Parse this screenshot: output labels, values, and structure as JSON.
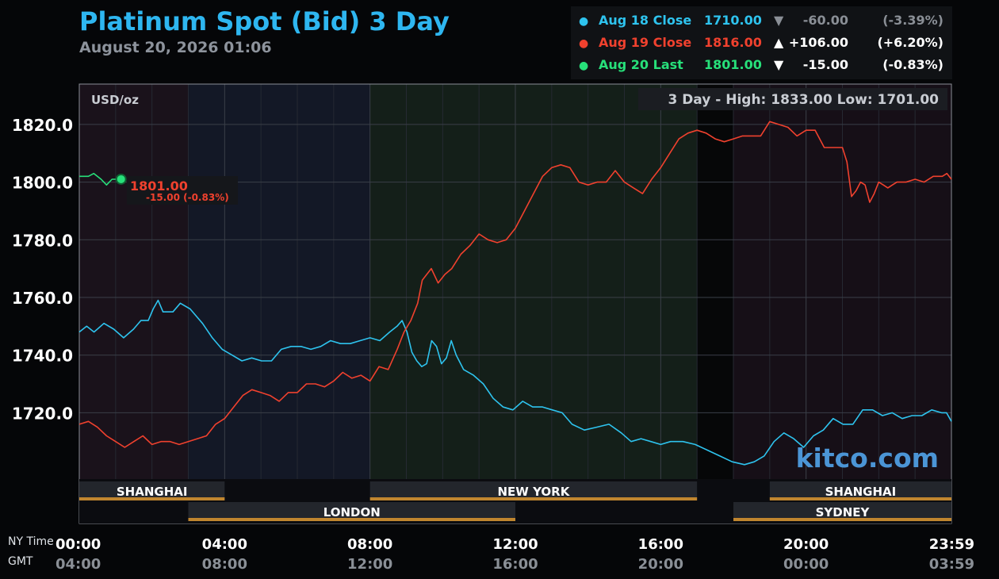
{
  "title": "Platinum Spot (Bid) 3 Day",
  "subtitle": "August 20, 2026 01:06",
  "legend": [
    {
      "dot": "●",
      "name": "Aug 18 Close",
      "value": "1710.00",
      "arrow": "▼",
      "change": "-60.00",
      "pct": "(-3.39%)",
      "color": "#2ec3ee",
      "muted": true
    },
    {
      "dot": "●",
      "name": "Aug 19 Close",
      "value": "1816.00",
      "arrow": "▲",
      "change": "+106.00",
      "pct": "(+6.20%)",
      "color": "#f0412e",
      "muted": false
    },
    {
      "dot": "●",
      "name": "Aug 20 Last",
      "value": "1801.00",
      "arrow": "▼",
      "change": "-15.00",
      "pct": "(-0.83%)",
      "color": "#27e07a",
      "muted": false
    }
  ],
  "unit_label": "USD/oz",
  "range_label": "3 Day - High: 1833.00  Low: 1701.00",
  "last_marker": {
    "price": "1801.00",
    "change": "-15.00 (-0.83%)"
  },
  "watermark": "kitco.com",
  "time_axis": {
    "ny_label": "NY Time",
    "gmt_label": "GMT",
    "ny_ticks": [
      "00:00",
      "04:00",
      "08:00",
      "12:00",
      "16:00",
      "20:00",
      "23:59"
    ],
    "gmt_ticks": [
      "04:00",
      "08:00",
      "12:00",
      "16:00",
      "20:00",
      "00:00",
      "03:59"
    ]
  },
  "sessions": [
    {
      "name": "SHANGHAI",
      "start": 0,
      "end": 4,
      "row": 1
    },
    {
      "name": "NEW YORK",
      "start": 8,
      "end": 17,
      "row": 1
    },
    {
      "name": "SHANGHAI",
      "start": 19,
      "end": 24,
      "row": 1
    },
    {
      "name": "LONDON",
      "start": 3,
      "end": 12,
      "row": 2
    },
    {
      "name": "SYDNEY",
      "start": 18,
      "end": 24,
      "row": 2
    }
  ],
  "chart_data": {
    "type": "line",
    "title": "Platinum Spot (Bid) 3 Day",
    "ylabel": "USD/oz",
    "xlabel": "NY Time",
    "xlim_hours": [
      0,
      24
    ],
    "ylim": [
      1697,
      1834
    ],
    "y_ticks": [
      1720,
      1740,
      1760,
      1780,
      1800,
      1820
    ],
    "grid": true,
    "legend_position": "top-right",
    "series": [
      {
        "name": "Aug 18 Close",
        "color": "#2ec3ee",
        "points": [
          [
            0,
            1748
          ],
          [
            0.3,
            1750
          ],
          [
            0.6,
            1748
          ],
          [
            1,
            1751
          ],
          [
            1.4,
            1749
          ],
          [
            1.8,
            1746
          ],
          [
            2.2,
            1749
          ],
          [
            2.5,
            1752
          ],
          [
            2.8,
            1752
          ],
          [
            3.0,
            1756
          ],
          [
            3.2,
            1759
          ],
          [
            3.4,
            1755
          ],
          [
            3.8,
            1755
          ],
          [
            4.1,
            1758
          ],
          [
            4.5,
            1756
          ],
          [
            5.0,
            1751
          ],
          [
            5.4,
            1746
          ],
          [
            5.8,
            1742
          ],
          [
            6.2,
            1740
          ],
          [
            6.6,
            1738
          ],
          [
            7.0,
            1739
          ],
          [
            7.4,
            1738
          ],
          [
            7.8,
            1738
          ],
          [
            8.2,
            1742
          ],
          [
            8.6,
            1743
          ],
          [
            9.0,
            1743
          ],
          [
            9.4,
            1742
          ],
          [
            9.8,
            1743
          ],
          [
            10.2,
            1745
          ],
          [
            10.6,
            1744
          ],
          [
            11.0,
            1744
          ],
          [
            11.4,
            1745
          ],
          [
            11.8,
            1746
          ],
          [
            12.2,
            1745
          ],
          [
            12.6,
            1748
          ],
          [
            12.9,
            1750
          ],
          [
            13.1,
            1752
          ],
          [
            13.3,
            1748
          ],
          [
            13.5,
            1741
          ],
          [
            13.7,
            1738
          ],
          [
            13.9,
            1736
          ],
          [
            14.1,
            1737
          ],
          [
            14.3,
            1745
          ],
          [
            14.5,
            1743
          ],
          [
            14.7,
            1737
          ],
          [
            14.9,
            1739
          ],
          [
            15.1,
            1745
          ],
          [
            15.3,
            1740
          ],
          [
            15.6,
            1735
          ],
          [
            16.0,
            1733
          ],
          [
            16.4,
            1730
          ],
          [
            16.8,
            1725
          ],
          [
            17.2,
            1722
          ],
          [
            17.6,
            1721
          ],
          [
            18.0,
            1724
          ],
          [
            18.4,
            1722
          ],
          [
            18.8,
            1722
          ],
          [
            19.2,
            1721
          ],
          [
            19.6,
            1720
          ],
          [
            20.0,
            1716
          ],
          [
            20.5,
            1714
          ],
          [
            21.0,
            1715
          ],
          [
            21.5,
            1716
          ],
          [
            22.0,
            1713
          ],
          [
            22.4,
            1710
          ],
          [
            22.8,
            1711
          ],
          [
            23.2,
            1710
          ],
          [
            23.6,
            1709
          ],
          [
            24.0,
            1710
          ],
          [
            24.5,
            1710
          ],
          [
            25.0,
            1709
          ],
          [
            25.5,
            1707
          ],
          [
            26.0,
            1705
          ],
          [
            26.5,
            1703
          ],
          [
            27.0,
            1702
          ],
          [
            27.4,
            1703
          ],
          [
            27.8,
            1705
          ],
          [
            28.2,
            1710
          ],
          [
            28.6,
            1713
          ],
          [
            29.0,
            1711
          ],
          [
            29.4,
            1708
          ],
          [
            29.8,
            1712
          ],
          [
            30.2,
            1714
          ],
          [
            30.6,
            1718
          ],
          [
            31.0,
            1716
          ],
          [
            31.4,
            1716
          ],
          [
            31.8,
            1721
          ],
          [
            32.2,
            1721
          ],
          [
            32.6,
            1719
          ],
          [
            33.0,
            1720
          ],
          [
            33.4,
            1718
          ],
          [
            33.8,
            1719
          ],
          [
            34.2,
            1719
          ],
          [
            34.6,
            1721
          ],
          [
            35.0,
            1720
          ],
          [
            35.2,
            1720
          ],
          [
            35.4,
            1717
          ]
        ]
      },
      {
        "name": "Aug 19 Close",
        "color": "#f0412e",
        "points": [
          [
            0,
            1716
          ],
          [
            0.4,
            1717
          ],
          [
            0.8,
            1715
          ],
          [
            1.2,
            1712
          ],
          [
            1.6,
            1710
          ],
          [
            2.0,
            1708
          ],
          [
            2.4,
            1710
          ],
          [
            2.8,
            1712
          ],
          [
            3.2,
            1709
          ],
          [
            3.6,
            1710
          ],
          [
            4.0,
            1710
          ],
          [
            4.4,
            1709
          ],
          [
            4.8,
            1710
          ],
          [
            5.2,
            1711
          ],
          [
            5.6,
            1712
          ],
          [
            6.0,
            1716
          ],
          [
            6.4,
            1718
          ],
          [
            6.8,
            1722
          ],
          [
            7.2,
            1726
          ],
          [
            7.6,
            1728
          ],
          [
            8.0,
            1727
          ],
          [
            8.4,
            1726
          ],
          [
            8.8,
            1724
          ],
          [
            9.2,
            1727
          ],
          [
            9.6,
            1727
          ],
          [
            10.0,
            1730
          ],
          [
            10.4,
            1730
          ],
          [
            10.8,
            1729
          ],
          [
            11.2,
            1731
          ],
          [
            11.6,
            1734
          ],
          [
            12.0,
            1732
          ],
          [
            12.4,
            1733
          ],
          [
            12.8,
            1731
          ],
          [
            13.2,
            1736
          ],
          [
            13.6,
            1735
          ],
          [
            14.0,
            1742
          ],
          [
            14.3,
            1748
          ],
          [
            14.6,
            1752
          ],
          [
            14.9,
            1758
          ],
          [
            15.1,
            1766
          ],
          [
            15.3,
            1768
          ],
          [
            15.5,
            1770
          ],
          [
            15.8,
            1765
          ],
          [
            16.1,
            1768
          ],
          [
            16.4,
            1770
          ],
          [
            16.8,
            1775
          ],
          [
            17.2,
            1778
          ],
          [
            17.6,
            1782
          ],
          [
            18.0,
            1780
          ],
          [
            18.4,
            1779
          ],
          [
            18.8,
            1780
          ],
          [
            19.2,
            1784
          ],
          [
            19.6,
            1790
          ],
          [
            20.0,
            1796
          ],
          [
            20.4,
            1802
          ],
          [
            20.8,
            1805
          ],
          [
            21.2,
            1806
          ],
          [
            21.6,
            1805
          ],
          [
            22.0,
            1800
          ],
          [
            22.4,
            1799
          ],
          [
            22.8,
            1800
          ],
          [
            23.2,
            1800
          ],
          [
            23.6,
            1804
          ],
          [
            24.0,
            1800
          ],
          [
            24.4,
            1798
          ],
          [
            24.8,
            1796
          ],
          [
            25.2,
            1801
          ],
          [
            25.6,
            1805
          ],
          [
            26.0,
            1810
          ],
          [
            26.4,
            1815
          ],
          [
            26.8,
            1817
          ],
          [
            27.2,
            1818
          ],
          [
            27.6,
            1817
          ],
          [
            28.0,
            1815
          ],
          [
            28.4,
            1814
          ],
          [
            28.8,
            1815
          ],
          [
            29.2,
            1816
          ],
          [
            29.6,
            1816
          ],
          [
            30.0,
            1816
          ],
          [
            30.4,
            1821
          ],
          [
            30.8,
            1820
          ],
          [
            31.2,
            1819
          ],
          [
            31.6,
            1816
          ],
          [
            32.0,
            1818
          ],
          [
            32.4,
            1818
          ],
          [
            32.8,
            1812
          ],
          [
            33.2,
            1812
          ],
          [
            33.6,
            1812
          ],
          [
            33.8,
            1807
          ],
          [
            34.0,
            1795
          ],
          [
            34.2,
            1797
          ],
          [
            34.4,
            1800
          ],
          [
            34.6,
            1799
          ],
          [
            34.8,
            1793
          ],
          [
            35.0,
            1796
          ],
          [
            35.2,
            1800
          ],
          [
            35.4,
            1799
          ],
          [
            35.6,
            1798
          ],
          [
            35.8,
            1799
          ],
          [
            36.0,
            1800
          ],
          [
            36.4,
            1800
          ],
          [
            36.8,
            1801
          ],
          [
            37.2,
            1800
          ],
          [
            37.6,
            1802
          ],
          [
            38.0,
            1802
          ],
          [
            38.2,
            1803
          ],
          [
            38.4,
            1801
          ]
        ]
      },
      {
        "name": "Aug 20 Last",
        "color": "#27e07a",
        "points": [
          [
            0,
            1802
          ],
          [
            0.25,
            1802
          ],
          [
            0.4,
            1803
          ],
          [
            0.6,
            1801
          ],
          [
            0.75,
            1799
          ],
          [
            0.9,
            1801
          ],
          [
            1.05,
            1801
          ],
          [
            1.15,
            1801
          ]
        ]
      }
    ],
    "last_value": 1801.0
  }
}
